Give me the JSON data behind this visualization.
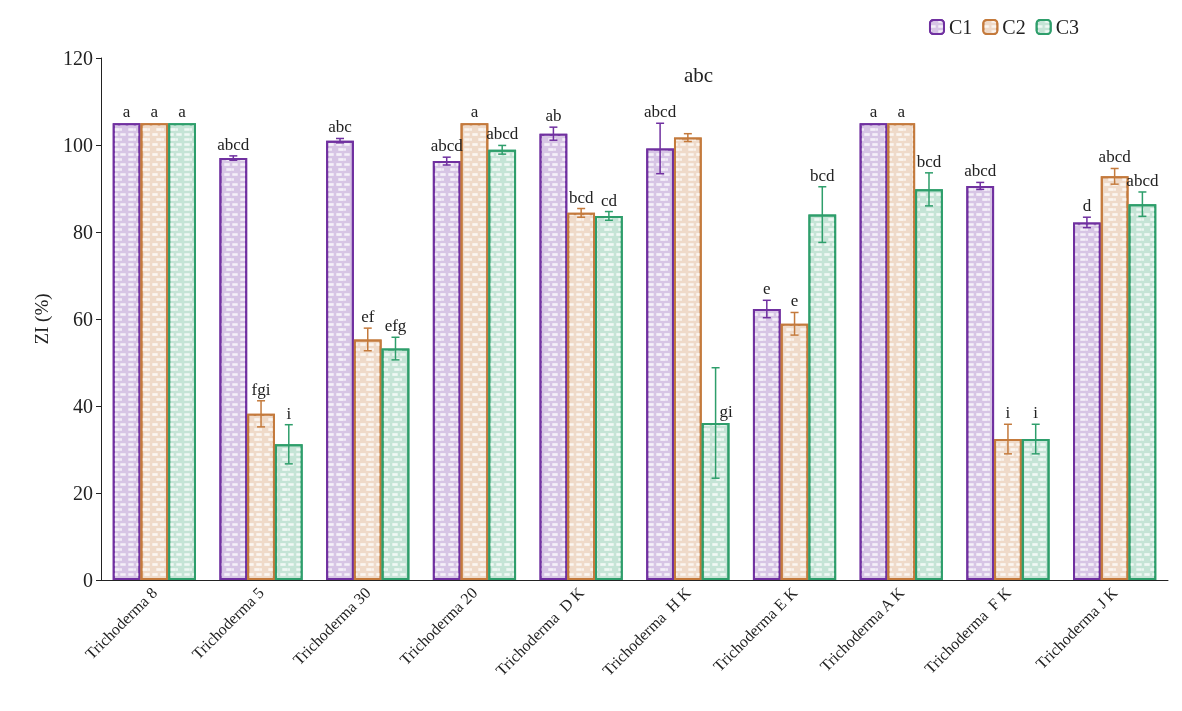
{
  "chart_data": {
    "type": "bar",
    "ylabel": "ZI (%)",
    "categories": [
      "Trichoderma 8",
      "Trichoderma 5",
      "Trichoderma 30",
      "Trichoderma 20",
      "Trichoderma  D K",
      "Trichoderma  H K",
      "Trichoderma E K",
      "Trichoderma A K",
      "Trichoderma  F K",
      "Trichoderma J K"
    ],
    "series": [
      {
        "name": "C1",
        "color": "#7030a0",
        "values": [
          105,
          97,
          101,
          96.3,
          102.6,
          99.2,
          62.3,
          105,
          90.6,
          82.2
        ],
        "errors": [
          null,
          0.5,
          0.5,
          0.9,
          1.5,
          5.8,
          2,
          null,
          0.8,
          1.2
        ],
        "value_labels": [
          "a",
          "abcd",
          "abc",
          "abcd",
          "ab",
          "abcd",
          "e",
          "a",
          "abcd",
          "d"
        ]
      },
      {
        "name": "C2",
        "color": "#c47a3c",
        "values": [
          105,
          38.2,
          55.3,
          105,
          84.4,
          101.7,
          58.9,
          105,
          32.4,
          92.8
        ],
        "errors": [
          null,
          3,
          2.6,
          null,
          1,
          0.9,
          2.6,
          null,
          3.4,
          1.8
        ],
        "value_labels": [
          "a",
          "fgi",
          "ef",
          "a",
          "bcd",
          null,
          "e",
          "a",
          "i",
          "abcd"
        ]
      },
      {
        "name": "C3",
        "color": "#2e9e6b",
        "values": [
          105,
          31.2,
          53.2,
          98.9,
          83.7,
          36.1,
          84,
          89.8,
          32.4,
          86.4
        ],
        "errors": [
          null,
          4.5,
          2.6,
          1,
          1,
          12.7,
          6.4,
          3.8,
          3.4,
          2.8
        ],
        "value_labels": [
          "a",
          "i",
          "efg",
          "abcd",
          "cd",
          "gi",
          "bcd",
          "bcd",
          "i",
          "abcd"
        ]
      }
    ],
    "annotations": [
      "abc"
    ],
    "ylim": [
      0,
      120
    ],
    "yticks": [
      0,
      20,
      40,
      60,
      80,
      100,
      120
    ],
    "grid": false,
    "legend": "top right"
  }
}
